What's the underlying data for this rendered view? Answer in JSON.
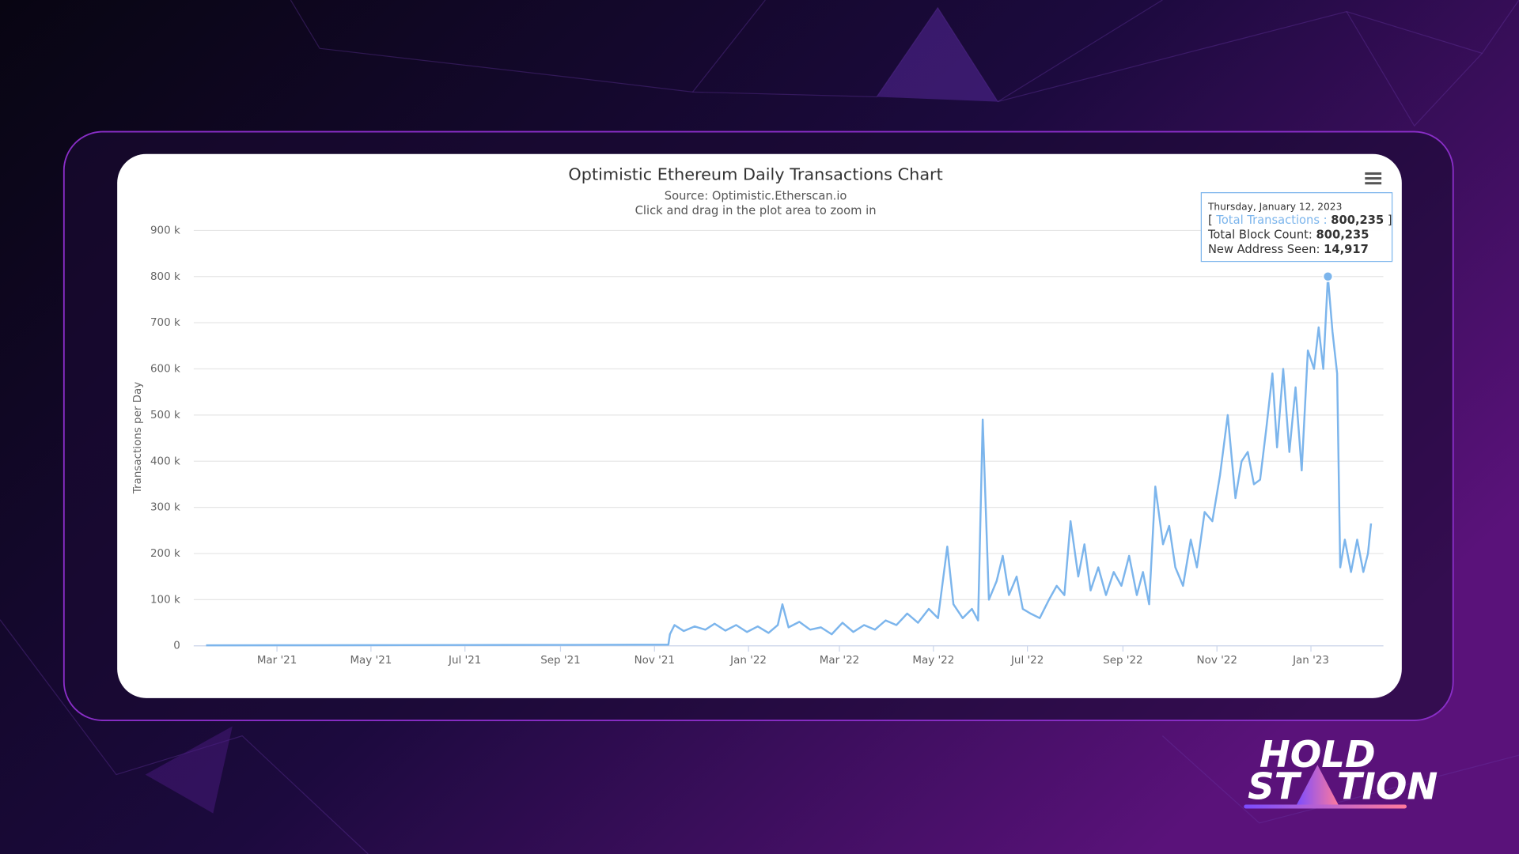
{
  "chart_data": {
    "type": "line",
    "title": "Optimistic Ethereum Daily Transactions Chart",
    "subtitle": "Source: Optimistic.Etherscan.io",
    "subtitle2": "Click and drag in the plot area to zoom in",
    "y_label": "Transactions per Day",
    "x": [
      "2021-01-14",
      "2021-03-01",
      "2021-05-01",
      "2021-07-01",
      "2021-09-01",
      "2021-11-10",
      "2021-11-11",
      "2021-11-14",
      "2021-11-20",
      "2021-11-27",
      "2021-12-04",
      "2021-12-10",
      "2021-12-17",
      "2021-12-24",
      "2021-12-31",
      "2022-01-07",
      "2022-01-14",
      "2022-01-20",
      "2022-01-23",
      "2022-01-27",
      "2022-02-03",
      "2022-02-10",
      "2022-02-17",
      "2022-02-24",
      "2022-03-03",
      "2022-03-10",
      "2022-03-17",
      "2022-03-24",
      "2022-03-31",
      "2022-04-07",
      "2022-04-14",
      "2022-04-21",
      "2022-04-28",
      "2022-05-04",
      "2022-05-10",
      "2022-05-14",
      "2022-05-20",
      "2022-05-26",
      "2022-05-30",
      "2022-06-02",
      "2022-06-06",
      "2022-06-11",
      "2022-06-15",
      "2022-06-19",
      "2022-06-24",
      "2022-06-28",
      "2022-07-03",
      "2022-07-09",
      "2022-07-15",
      "2022-07-20",
      "2022-07-25",
      "2022-07-29",
      "2022-08-03",
      "2022-08-07",
      "2022-08-11",
      "2022-08-16",
      "2022-08-21",
      "2022-08-26",
      "2022-08-31",
      "2022-09-05",
      "2022-09-10",
      "2022-09-14",
      "2022-09-18",
      "2022-09-22",
      "2022-09-27",
      "2022-10-01",
      "2022-10-05",
      "2022-10-10",
      "2022-10-15",
      "2022-10-19",
      "2022-10-24",
      "2022-10-29",
      "2022-11-03",
      "2022-11-08",
      "2022-11-13",
      "2022-11-17",
      "2022-11-21",
      "2022-11-25",
      "2022-11-29",
      "2022-12-03",
      "2022-12-07",
      "2022-12-10",
      "2022-12-14",
      "2022-12-18",
      "2022-12-22",
      "2022-12-26",
      "2022-12-30",
      "2023-01-03",
      "2023-01-06",
      "2023-01-09",
      "2023-01-12",
      "2023-01-15",
      "2023-01-18",
      "2023-01-20",
      "2023-01-23",
      "2023-01-27",
      "2023-01-31",
      "2023-02-04",
      "2023-02-07",
      "2023-02-09"
    ],
    "series": [
      {
        "name": "Total Transactions",
        "color": "#7cb5ec",
        "values": [
          1000,
          1200,
          1500,
          1800,
          2000,
          2500,
          25000,
          45000,
          32000,
          42000,
          35000,
          48000,
          33000,
          45000,
          30000,
          42000,
          28000,
          45000,
          90000,
          40000,
          52000,
          35000,
          40000,
          25000,
          50000,
          30000,
          45000,
          35000,
          55000,
          45000,
          70000,
          50000,
          80000,
          60000,
          215000,
          90000,
          60000,
          80000,
          55000,
          490000,
          100000,
          140000,
          195000,
          110000,
          150000,
          80000,
          70000,
          60000,
          100000,
          130000,
          110000,
          270000,
          150000,
          220000,
          120000,
          170000,
          110000,
          160000,
          130000,
          195000,
          110000,
          160000,
          90000,
          345000,
          220000,
          260000,
          170000,
          130000,
          230000,
          170000,
          290000,
          270000,
          370000,
          500000,
          320000,
          400000,
          420000,
          350000,
          360000,
          470000,
          590000,
          430000,
          600000,
          420000,
          560000,
          380000,
          640000,
          600000,
          690000,
          600000,
          800235,
          680000,
          590000,
          170000,
          230000,
          160000,
          230000,
          160000,
          200000,
          265000
        ]
      }
    ],
    "xlim": [
      "2021-01-06",
      "2023-02-17"
    ],
    "xticks": [
      {
        "value": "2021-03-01",
        "label": "Mar '21"
      },
      {
        "value": "2021-05-01",
        "label": "May '21"
      },
      {
        "value": "2021-07-01",
        "label": "Jul '21"
      },
      {
        "value": "2021-09-01",
        "label": "Sep '21"
      },
      {
        "value": "2021-11-01",
        "label": "Nov '21"
      },
      {
        "value": "2022-01-01",
        "label": "Jan '22"
      },
      {
        "value": "2022-03-01",
        "label": "Mar '22"
      },
      {
        "value": "2022-05-01",
        "label": "May '22"
      },
      {
        "value": "2022-07-01",
        "label": "Jul '22"
      },
      {
        "value": "2022-09-01",
        "label": "Sep '22"
      },
      {
        "value": "2022-11-01",
        "label": "Nov '22"
      },
      {
        "value": "2023-01-01",
        "label": "Jan '23"
      }
    ],
    "ylim": [
      0,
      900000
    ],
    "yticks": [
      0,
      {
        "value": 100000,
        "label": "100 k"
      },
      {
        "value": 200000,
        "label": "200 k"
      },
      {
        "value": 300000,
        "label": "300 k"
      },
      {
        "value": 400000,
        "label": "400 k"
      },
      {
        "value": 500000,
        "label": "500 k"
      },
      {
        "value": 600000,
        "label": "600 k"
      },
      {
        "value": 700000,
        "label": "700 k"
      },
      {
        "value": 800000,
        "label": "800 k"
      },
      {
        "value": 900000,
        "label": "900 k"
      }
    ],
    "grid": true,
    "tooltip": {
      "date": "Thursday, January 12, 2023",
      "rows": [
        {
          "open": "[",
          "label": "Total Transactions :",
          "value": "800,235",
          "close": "]"
        },
        {
          "label": "Total Block Count:",
          "value": "800,235"
        },
        {
          "label": "New Address Seen:",
          "value": "14,917"
        }
      ]
    }
  },
  "logo": {
    "line1": "HOLD",
    "line2a": "ST",
    "line2b": "TION"
  }
}
